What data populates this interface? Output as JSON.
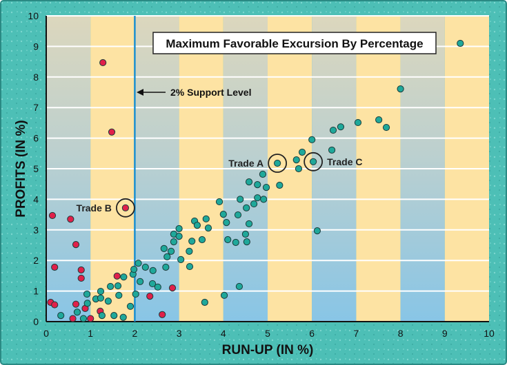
{
  "chart_data": {
    "type": "scatter",
    "title": "Maximum Favorable Excursion By Percentage",
    "xlabel": "RUN-UP (IN %)",
    "ylabel": "PROFITS (IN %)",
    "xlim": [
      0,
      10
    ],
    "ylim": [
      0,
      10
    ],
    "xticks": [
      "0",
      "1",
      "2",
      "3",
      "4",
      "5",
      "6",
      "7",
      "8",
      "9",
      "10"
    ],
    "yticks": [
      "0",
      "1",
      "2",
      "3",
      "4",
      "5",
      "6",
      "7",
      "8",
      "9",
      "10"
    ],
    "grid": "horizontal",
    "support_line": {
      "x": 2,
      "label": "2% Support Level"
    },
    "colors": {
      "losing": "#e0204a",
      "winning": "#1fa89a",
      "support": "#1a8fd0",
      "frame": "#4dbfb6",
      "yellow": "#fde3a3"
    },
    "annotations": [
      {
        "label": "Trade A",
        "x": 5.22,
        "y": 5.18,
        "side": "left"
      },
      {
        "label": "Trade B",
        "x": 1.79,
        "y": 3.72,
        "side": "left"
      },
      {
        "label": "Trade C",
        "x": 6.03,
        "y": 5.23,
        "side": "right"
      }
    ],
    "series": [
      {
        "name": "red",
        "color": "#e0204a",
        "points": [
          [
            0.14,
            3.47
          ],
          [
            0.55,
            3.35
          ],
          [
            0.67,
            2.52
          ],
          [
            0.19,
            1.78
          ],
          [
            0.79,
            1.69
          ],
          [
            0.79,
            1.42
          ],
          [
            1.6,
            1.49
          ],
          [
            0.1,
            0.63
          ],
          [
            0.19,
            0.55
          ],
          [
            0.67,
            0.57
          ],
          [
            0.88,
            0.43
          ],
          [
            1.22,
            0.34
          ],
          [
            0.6,
            0.1
          ],
          [
            1.0,
            0.1
          ],
          [
            2.85,
            1.1
          ],
          [
            2.34,
            0.83
          ],
          [
            2.62,
            0.23
          ],
          [
            1.79,
            3.72
          ],
          [
            1.28,
            8.47
          ],
          [
            1.48,
            6.2
          ]
        ]
      },
      {
        "name": "teal",
        "color": "#1fa89a",
        "points": [
          [
            0.33,
            0.2
          ],
          [
            0.7,
            0.31
          ],
          [
            0.84,
            0.1
          ],
          [
            0.93,
            0.6
          ],
          [
            0.92,
            0.9
          ],
          [
            1.12,
            0.74
          ],
          [
            1.23,
            0.77
          ],
          [
            1.23,
            0.99
          ],
          [
            1.4,
            0.67
          ],
          [
            1.45,
            1.15
          ],
          [
            1.62,
            1.17
          ],
          [
            1.64,
            0.86
          ],
          [
            1.75,
            1.46
          ],
          [
            1.26,
            0.2
          ],
          [
            1.53,
            0.2
          ],
          [
            1.74,
            0.14
          ],
          [
            1.9,
            0.5
          ],
          [
            2.02,
            0.9
          ],
          [
            1.96,
            1.55
          ],
          [
            1.98,
            1.71
          ],
          [
            2.08,
            1.91
          ],
          [
            2.24,
            1.78
          ],
          [
            2.41,
            1.67
          ],
          [
            2.12,
            1.31
          ],
          [
            2.4,
            1.24
          ],
          [
            2.52,
            1.13
          ],
          [
            2.7,
            1.78
          ],
          [
            2.66,
            2.39
          ],
          [
            2.73,
            2.12
          ],
          [
            2.82,
            2.3
          ],
          [
            2.88,
            2.86
          ],
          [
            3.0,
            3.04
          ],
          [
            3.0,
            2.79
          ],
          [
            2.88,
            2.61
          ],
          [
            3.04,
            2.03
          ],
          [
            3.24,
            1.8
          ],
          [
            3.23,
            2.3
          ],
          [
            3.35,
            3.29
          ],
          [
            3.41,
            3.15
          ],
          [
            3.61,
            3.36
          ],
          [
            3.66,
            3.06
          ],
          [
            3.29,
            2.63
          ],
          [
            3.52,
            2.68
          ],
          [
            3.91,
            3.92
          ],
          [
            4.0,
            3.51
          ],
          [
            4.07,
            3.24
          ],
          [
            4.1,
            2.68
          ],
          [
            4.28,
            2.59
          ],
          [
            4.38,
            4.0
          ],
          [
            4.33,
            3.49
          ],
          [
            4.52,
            3.72
          ],
          [
            4.58,
            3.2
          ],
          [
            4.5,
            2.86
          ],
          [
            4.53,
            2.61
          ],
          [
            4.69,
            3.85
          ],
          [
            4.77,
            4.05
          ],
          [
            4.91,
            4.0
          ],
          [
            4.58,
            4.57
          ],
          [
            4.77,
            4.48
          ],
          [
            4.97,
            4.39
          ],
          [
            4.89,
            4.82
          ],
          [
            5.22,
            5.18
          ],
          [
            5.27,
            4.46
          ],
          [
            5.65,
            5.29
          ],
          [
            5.7,
            5.0
          ],
          [
            5.78,
            5.54
          ],
          [
            6.03,
            5.23
          ],
          [
            6.0,
            5.95
          ],
          [
            6.45,
            5.61
          ],
          [
            6.48,
            6.26
          ],
          [
            6.65,
            6.37
          ],
          [
            6.12,
            2.97
          ],
          [
            4.36,
            1.15
          ],
          [
            4.02,
            0.86
          ],
          [
            3.58,
            0.63
          ],
          [
            7.04,
            6.51
          ],
          [
            7.51,
            6.6
          ],
          [
            7.68,
            6.35
          ],
          [
            8.0,
            7.61
          ],
          [
            9.35,
            9.1
          ]
        ]
      }
    ]
  }
}
